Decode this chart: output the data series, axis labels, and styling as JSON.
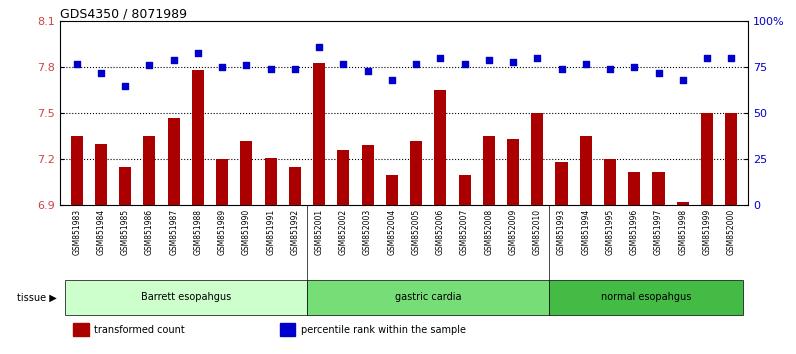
{
  "title": "GDS4350 / 8071989",
  "samples": [
    "GSM851983",
    "GSM851984",
    "GSM851985",
    "GSM851986",
    "GSM851987",
    "GSM851988",
    "GSM851989",
    "GSM851990",
    "GSM851991",
    "GSM851992",
    "GSM852001",
    "GSM852002",
    "GSM852003",
    "GSM852004",
    "GSM852005",
    "GSM852006",
    "GSM852007",
    "GSM852008",
    "GSM852009",
    "GSM852010",
    "GSM851993",
    "GSM851994",
    "GSM851995",
    "GSM851996",
    "GSM851997",
    "GSM851998",
    "GSM851999",
    "GSM852000"
  ],
  "bar_values": [
    7.35,
    7.3,
    7.15,
    7.35,
    7.47,
    7.78,
    7.2,
    7.32,
    7.21,
    7.15,
    7.83,
    7.26,
    7.29,
    7.1,
    7.32,
    7.65,
    7.1,
    7.35,
    7.33,
    7.5,
    7.18,
    7.35,
    7.2,
    7.12,
    7.12,
    6.92,
    7.5,
    7.5
  ],
  "blue_values": [
    77,
    72,
    65,
    76,
    79,
    83,
    75,
    76,
    74,
    74,
    86,
    77,
    73,
    68,
    77,
    80,
    77,
    79,
    78,
    80,
    74,
    77,
    74,
    75,
    72,
    68,
    80,
    80
  ],
  "ylim_left": [
    6.9,
    8.1
  ],
  "ylim_right": [
    0,
    100
  ],
  "y_ticks_left": [
    6.9,
    7.2,
    7.5,
    7.8,
    8.1
  ],
  "y_ticks_right": [
    0,
    25,
    50,
    75,
    100
  ],
  "y_tick_labels_right": [
    "0",
    "25",
    "50",
    "75",
    "100%"
  ],
  "bar_color": "#aa0000",
  "dot_color": "#0000cc",
  "group_colors": [
    "#ccffcc",
    "#77dd77",
    "#44bb44"
  ],
  "groups": [
    {
      "label": "Barrett esopahgus",
      "start": 0,
      "end": 10
    },
    {
      "label": "gastric cardia",
      "start": 10,
      "end": 20
    },
    {
      "label": "normal esopahgus",
      "start": 20,
      "end": 28
    }
  ],
  "legend_items": [
    {
      "label": "transformed count",
      "color": "#aa0000"
    },
    {
      "label": "percentile rank within the sample",
      "color": "#0000cc"
    }
  ],
  "hlines": [
    7.2,
    7.5,
    7.8
  ],
  "bg_color": "#ffffff",
  "axis_color": "#cc4444",
  "right_axis_color": "#0000cc",
  "xticklabel_bg": "#cccccc"
}
